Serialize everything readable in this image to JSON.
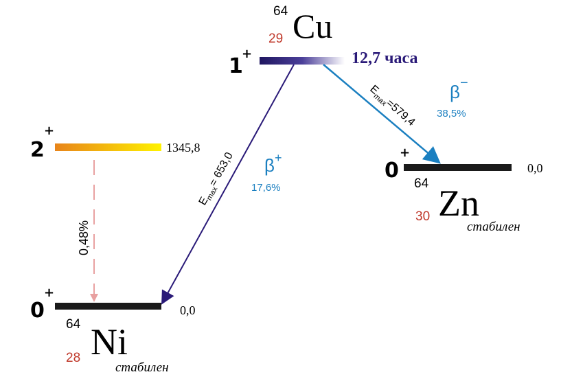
{
  "parent": {
    "mass": "64",
    "z": "29",
    "symbol": "Cu",
    "spin": "1",
    "parity": "+",
    "half_life": "12,7 часа"
  },
  "ni_levels": [
    {
      "spin": "2",
      "parity": "+",
      "energy": "1345,8"
    },
    {
      "spin": "0",
      "parity": "+",
      "energy": "0,0"
    }
  ],
  "ni": {
    "mass": "64",
    "z": "28",
    "symbol": "Ni",
    "status": "стабилен"
  },
  "zn_level": {
    "spin": "0",
    "parity": "+",
    "energy": "0,0"
  },
  "zn": {
    "mass": "64",
    "z": "30",
    "symbol": "Zn",
    "status": "стабилен"
  },
  "transitions": [
    {
      "particle": "β",
      "charge": "+",
      "intensity": "17,6%",
      "emax_symbol": "E",
      "emax_sub": "max",
      "emax_value": "= 653,0"
    },
    {
      "particle": "β",
      "charge": "−",
      "intensity": "38,5%",
      "emax_symbol": "E",
      "emax_sub": "max",
      "emax_value": "=579,4"
    },
    {
      "intensity": "0,48%"
    }
  ]
}
